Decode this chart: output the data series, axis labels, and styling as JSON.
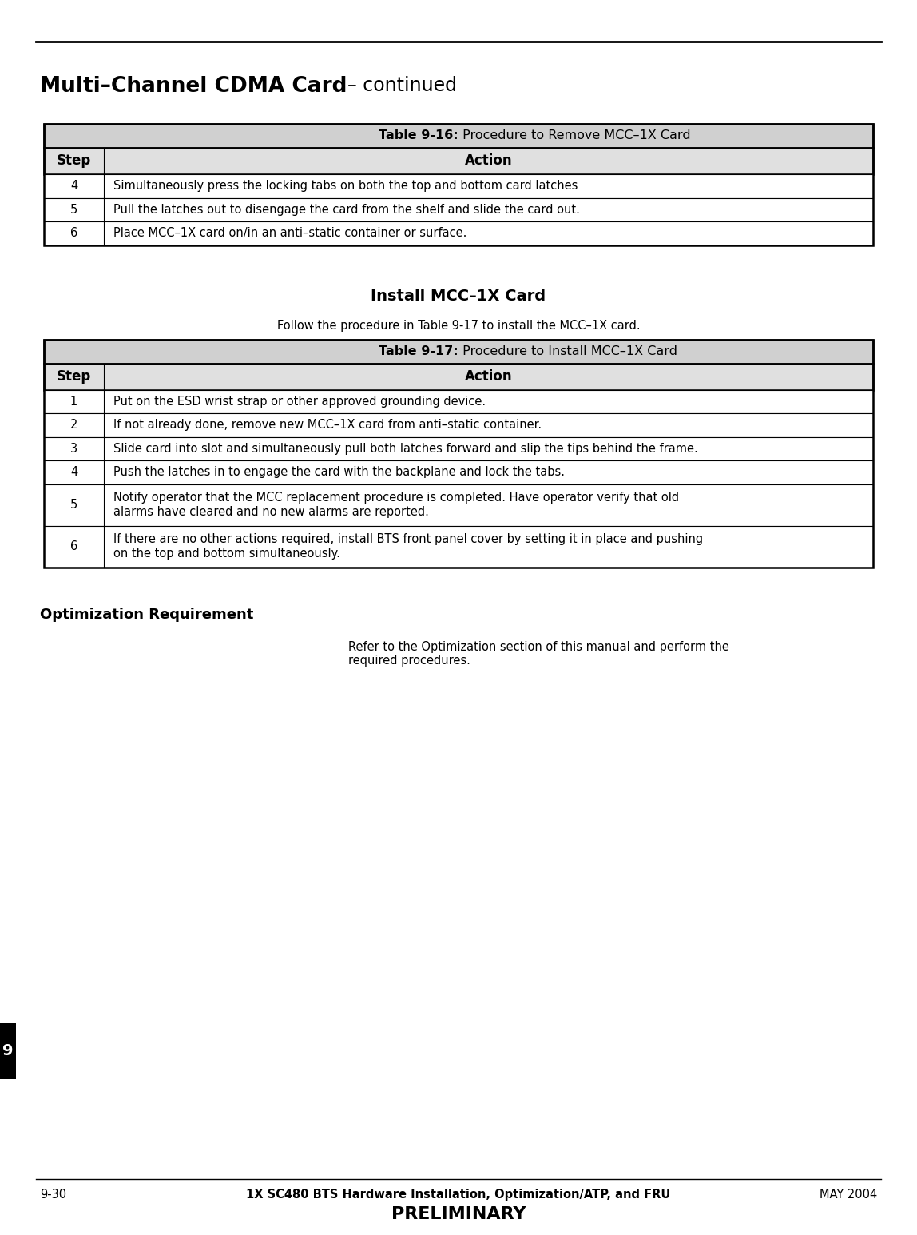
{
  "page_width": 11.48,
  "page_height": 15.45,
  "dpi": 100,
  "bg_color": "#ffffff",
  "header_bold": "Multi–Channel CDMA Card",
  "header_normal": "  – continued",
  "header_fontsize": 17,
  "header_bold_fontsize": 19,
  "table1_title_bold": "Table 9-16:",
  "table1_title_normal": " Procedure to Remove MCC–1X Card",
  "table1_rows": [
    {
      "step": "4",
      "action": "Simultaneously press the locking tabs on both the top and bottom card latches",
      "lines": 1
    },
    {
      "step": "5",
      "action": "Pull the latches out to disengage the card from the shelf and slide the card out.",
      "lines": 1
    },
    {
      "step": "6",
      "action": "Place MCC–1X card on/in an anti–static container or surface.",
      "lines": 1
    }
  ],
  "install_title": "Install MCC–1X Card",
  "install_desc": "Follow the procedure in Table 9-17 to install the MCC–1X card.",
  "table2_title_bold": "Table 9-17:",
  "table2_title_normal": " Procedure to Install MCC–1X Card",
  "table2_rows": [
    {
      "step": "1",
      "action": "Put on the ESD wrist strap or other approved grounding device.",
      "lines": 1
    },
    {
      "step": "2",
      "action": "If not already done, remove new MCC–1X card from anti–static container.",
      "lines": 1
    },
    {
      "step": "3",
      "action": "Slide card into slot and simultaneously pull both latches forward and slip the tips behind the frame.",
      "lines": 1
    },
    {
      "step": "4",
      "action": "Push the latches in to engage the card with the backplane and lock the tabs.",
      "lines": 1
    },
    {
      "step": "5",
      "action": "Notify operator that the MCC replacement procedure is completed. Have operator verify that old\nalarms have cleared and no new alarms are reported.",
      "lines": 2
    },
    {
      "step": "6",
      "action": "If there are no other actions required, install BTS front panel cover by setting it in place and pushing\non the top and bottom simultaneously.",
      "lines": 2
    }
  ],
  "opt_title": "Optimization Requirement",
  "opt_desc": "Refer to the Optimization section of this manual and perform the\nrequired procedures.",
  "side_num": "9",
  "footer_left": "9-30",
  "footer_center": "1X SC480 BTS Hardware Installation, Optimization/ATP, and FRU",
  "footer_right": "MAY 2004",
  "footer_preliminary": "PRELIMINARY",
  "title_row_bg": "#d0d0d0",
  "header_row_bg": "#e0e0e0",
  "data_row_bg": "#ffffff",
  "outer_lw": 1.8,
  "inner_lw": 0.8
}
